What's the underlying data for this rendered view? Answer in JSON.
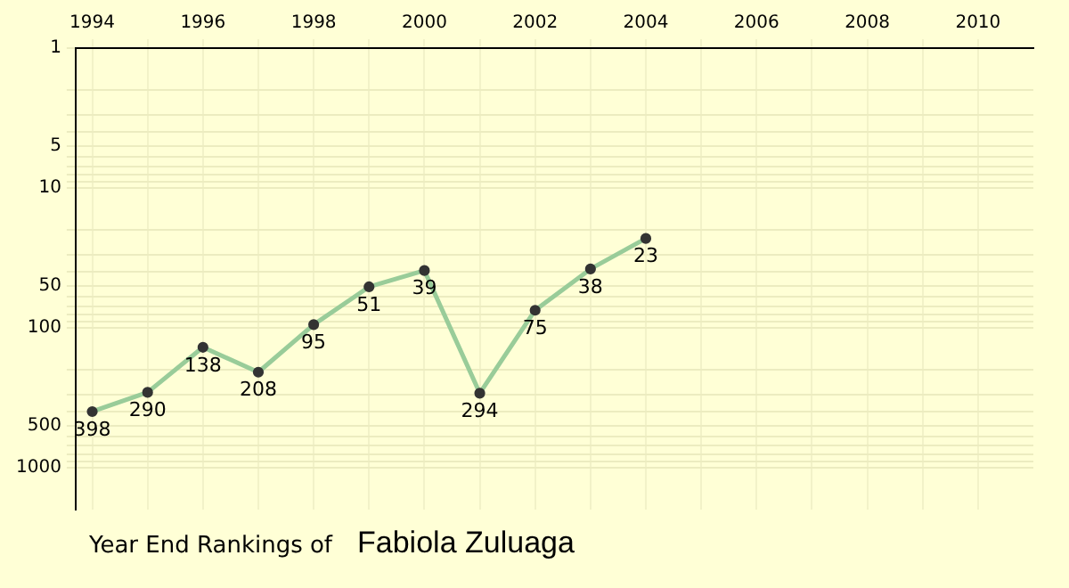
{
  "chart_data": {
    "type": "line",
    "title": "Year End Rankings of",
    "subtitle": "Fabiola Zuluaga",
    "x": [
      1994,
      1995,
      1996,
      1997,
      1998,
      1999,
      2000,
      2001,
      2002,
      2003,
      2004
    ],
    "values": [
      398,
      290,
      138,
      208,
      95,
      51,
      39,
      294,
      75,
      38,
      23
    ],
    "color": "#99cc99",
    "marker": "circle",
    "data_labels": true,
    "log": "y",
    "grid": true,
    "xlim": [
      1993.7,
      2011
    ],
    "xticks": [
      1994,
      {
        "value": 1995,
        "label": null
      },
      1996,
      {
        "value": 1997,
        "label": null
      },
      1998,
      {
        "value": 1999,
        "label": null
      },
      2000,
      {
        "value": 2001,
        "label": null
      },
      2002,
      {
        "value": 2003,
        "label": null
      },
      2004,
      {
        "value": 2005,
        "label": null
      },
      2006,
      {
        "value": 2007,
        "label": null
      },
      2008,
      {
        "value": 2009,
        "label": null
      },
      2010
    ],
    "ylim": [
      2000,
      1
    ],
    "yticks": [
      1,
      {
        "value": 2,
        "label": null
      },
      {
        "value": 3,
        "label": null
      },
      {
        "value": 4,
        "label": null
      },
      5,
      {
        "value": 6,
        "label": null
      },
      {
        "value": 7,
        "label": null
      },
      {
        "value": 8,
        "label": null
      },
      {
        "value": 9,
        "label": null
      },
      10,
      {
        "value": 20,
        "label": null
      },
      {
        "value": 30,
        "label": null
      },
      {
        "value": 40,
        "label": null
      },
      50,
      {
        "value": 60,
        "label": null
      },
      {
        "value": 70,
        "label": null
      },
      {
        "value": 80,
        "label": null
      },
      {
        "value": 90,
        "label": null
      },
      100,
      {
        "value": 200,
        "label": null
      },
      {
        "value": 300,
        "label": null
      },
      {
        "value": 400,
        "label": null
      },
      500,
      {
        "value": 600,
        "label": null
      },
      {
        "value": 700,
        "label": null
      },
      {
        "value": 800,
        "label": null
      },
      {
        "value": 900,
        "label": null
      },
      1000
    ]
  }
}
